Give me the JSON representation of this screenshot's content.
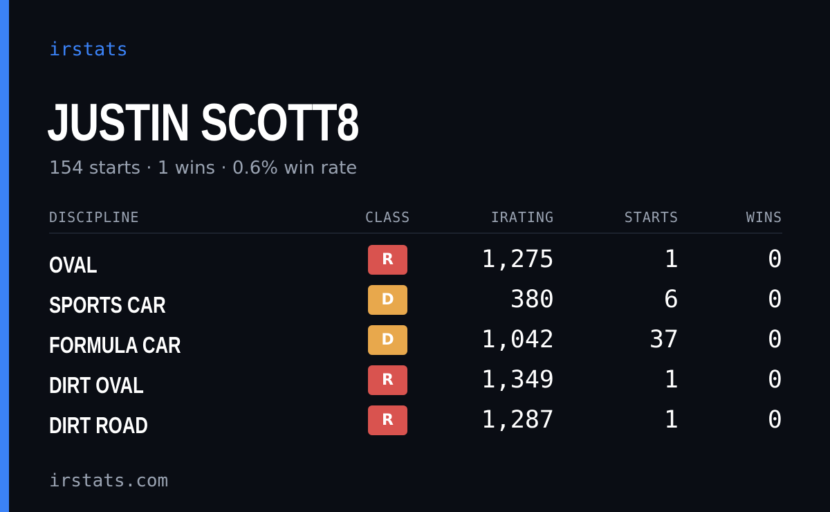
{
  "brand": "irstats",
  "player": {
    "name": "JUSTIN SCOTT8",
    "summary": "154 starts · 1 wins · 0.6% win rate"
  },
  "table": {
    "headers": {
      "discipline": "DISCIPLINE",
      "class": "CLASS",
      "irating": "IRATING",
      "starts": "STARTS",
      "wins": "WINS"
    },
    "rows": [
      {
        "discipline": "OVAL",
        "class": "R",
        "class_color": "#d9534f",
        "irating": "1,275",
        "starts": "1",
        "wins": "0"
      },
      {
        "discipline": "SPORTS CAR",
        "class": "D",
        "class_color": "#e8a84c",
        "irating": "380",
        "starts": "6",
        "wins": "0"
      },
      {
        "discipline": "FORMULA CAR",
        "class": "D",
        "class_color": "#e8a84c",
        "irating": "1,042",
        "starts": "37",
        "wins": "0"
      },
      {
        "discipline": "DIRT OVAL",
        "class": "R",
        "class_color": "#d9534f",
        "irating": "1,349",
        "starts": "1",
        "wins": "0"
      },
      {
        "discipline": "DIRT ROAD",
        "class": "R",
        "class_color": "#d9534f",
        "irating": "1,287",
        "starts": "1",
        "wins": "0"
      }
    ]
  },
  "footer": "irstats.com",
  "colors": {
    "background": "#0a0d14",
    "accent": "#3b82f6",
    "muted_text": "#9aa3b2"
  }
}
